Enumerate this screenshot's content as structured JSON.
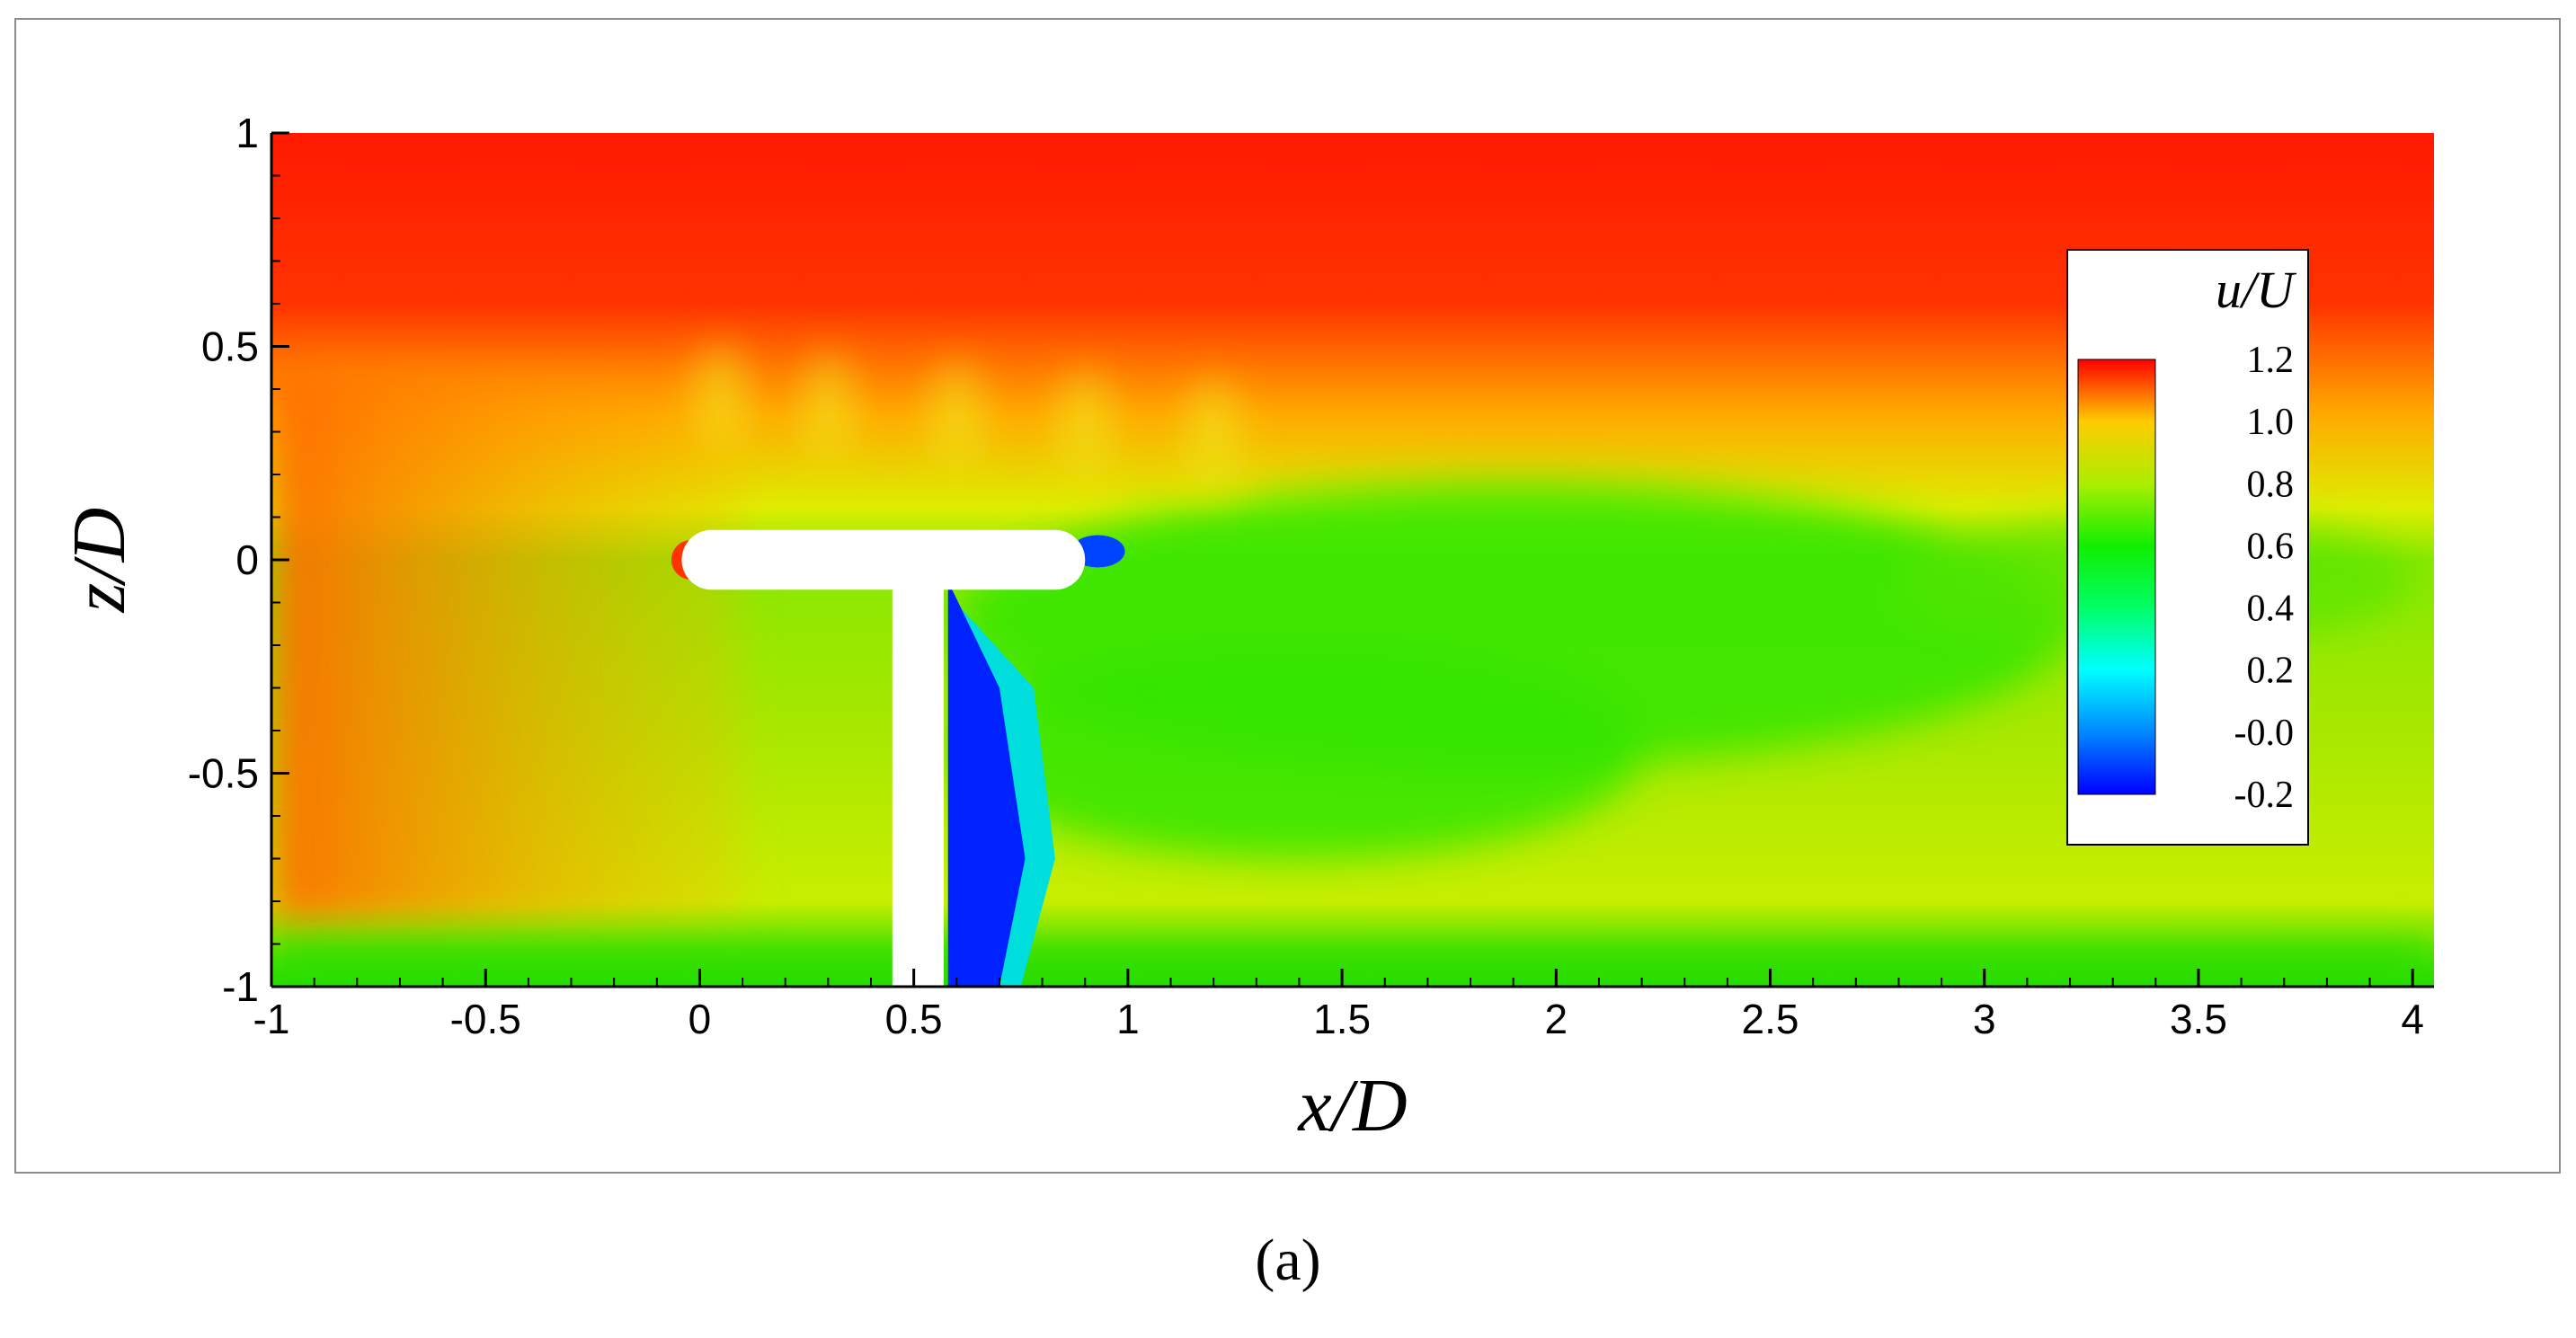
{
  "chart_data": {
    "type": "heatmap",
    "title": "",
    "xlabel": "x/D",
    "ylabel": "z/D",
    "xlim": [
      -1,
      4.05
    ],
    "ylim": [
      -1,
      1
    ],
    "x_ticks": [
      -1,
      -0.5,
      0,
      0.5,
      1,
      1.5,
      2,
      2.5,
      3,
      3.5,
      4
    ],
    "y_ticks": [
      -1,
      -0.5,
      0,
      0.5,
      1
    ],
    "x_tick_labels": [
      "-1",
      "-0.5",
      "0",
      "0.5",
      "1",
      "1.5",
      "2",
      "2.5",
      "3",
      "3.5",
      "4"
    ],
    "y_tick_labels": [
      "-1",
      "-0.5",
      "0",
      "0.5",
      "1"
    ],
    "colorbar": {
      "title": "u/U",
      "range": [
        -0.2,
        1.2
      ],
      "ticks": [
        1.2,
        1.0,
        0.8,
        0.6,
        0.4,
        0.2,
        -0.0,
        -0.2
      ],
      "tick_labels": [
        "1.2",
        "1.0",
        "0.8",
        "0.6",
        "0.4",
        "0.2",
        "-0.0",
        "-0.2"
      ],
      "placement": "right, inside plot",
      "colormap": [
        {
          "value": -0.2,
          "color": "#0000ff"
        },
        {
          "value": 0.0,
          "color": "#0088ff"
        },
        {
          "value": 0.2,
          "color": "#00ffff"
        },
        {
          "value": 0.4,
          "color": "#00ff66"
        },
        {
          "value": 0.6,
          "color": "#11ee00"
        },
        {
          "value": 0.8,
          "color": "#aaee00"
        },
        {
          "value": 1.0,
          "color": "#ffcc00"
        },
        {
          "value": 1.2,
          "color": "#ff0000"
        }
      ]
    },
    "field_description_regions": [
      {
        "region": "free stream above z/D 0.5",
        "u_over_U": 1.15
      },
      {
        "region": "upstream x/D < 0",
        "u_over_U": 1.05
      },
      {
        "region": "wake downstream of tower",
        "u_over_U": 0.65
      },
      {
        "region": "behind tower near x/D 0.6",
        "u_over_U": -0.15
      },
      {
        "region": "near ground z/D -1",
        "u_over_U": 0.6
      }
    ],
    "geometry": {
      "nacelle_x": [
        0,
        0.9
      ],
      "nacelle_z": [
        -0.07,
        0.07
      ],
      "tower_x": [
        0.45,
        0.57
      ],
      "tower_z": [
        -1,
        -0.05
      ]
    }
  },
  "caption": "(a)"
}
